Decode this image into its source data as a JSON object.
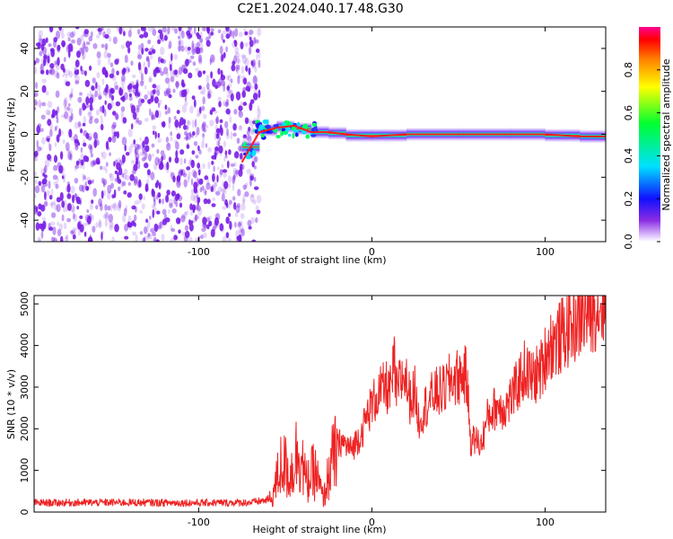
{
  "title": "C2E1.2024.040.17.48.G30",
  "colors": {
    "snr_line": "#ee2222",
    "noise_points": "#7a1fe6",
    "frame": "#000000"
  },
  "chart_data": [
    {
      "type": "heatmap",
      "title": "C2E1.2024.040.17.48.G30",
      "xlabel": "Height of straight line (km)",
      "ylabel": "Frequency (Hz)",
      "xlim": [
        -195,
        135
      ],
      "ylim": [
        -50,
        50
      ],
      "xticks": [
        -100,
        0,
        100
      ],
      "xtick_labels": [
        "-100",
        "0",
        "100"
      ],
      "yticks": [
        -40,
        -20,
        0,
        20,
        40
      ],
      "ytick_labels": [
        "-40",
        "-20",
        "0",
        "20",
        "40"
      ],
      "noise_region_x": [
        -195,
        -65
      ],
      "signal_track": {
        "x": [
          -75,
          -65,
          -55,
          -45,
          -35,
          -25,
          -15,
          0,
          20,
          50,
          80,
          100,
          120,
          135
        ],
        "y": [
          -13,
          1,
          3,
          4,
          1,
          1,
          0,
          -1,
          0,
          0,
          0,
          0,
          -1,
          -1
        ]
      },
      "colorbar": {
        "label": "Normalized spectral amplitude",
        "range": [
          0,
          1
        ],
        "ticks": [
          0.0,
          0.2,
          0.4,
          0.6,
          0.8
        ],
        "tick_labels": [
          "0.0",
          "0.2",
          "0.4",
          "0.6",
          "0.8"
        ]
      },
      "grid": false
    },
    {
      "type": "line",
      "xlabel": "Height of straight line (km)",
      "ylabel": "SNR (10 * v/v)",
      "xlim": [
        -195,
        135
      ],
      "ylim": [
        0,
        5200
      ],
      "xticks": [
        -100,
        0,
        100
      ],
      "xtick_labels": [
        "-100",
        "0",
        "100"
      ],
      "yticks": [
        0,
        1000,
        2000,
        3000,
        4000,
        5000
      ],
      "ytick_labels": [
        "0",
        "1000",
        "2000",
        "3000",
        "4000",
        "5000"
      ],
      "series": [
        {
          "x": [
            -195,
            -150,
            -100,
            -70,
            -58,
            -52,
            -47,
            -42,
            -38,
            -33,
            -28,
            -24,
            -22,
            -18,
            -12,
            -6,
            -2,
            3,
            8,
            11,
            13,
            14,
            16,
            19,
            22,
            25,
            27,
            31,
            36,
            41,
            46,
            51,
            54,
            55,
            57,
            60,
            63,
            67,
            72,
            77,
            82,
            88,
            93,
            98,
            102,
            108,
            114,
            120,
            126,
            130,
            135
          ],
          "y": [
            220,
            230,
            220,
            230,
            300,
            1200,
            900,
            1600,
            700,
            1000,
            300,
            1100,
            1300,
            1700,
            1500,
            1900,
            2400,
            2800,
            3000,
            2900,
            3600,
            2800,
            3100,
            3300,
            2700,
            2900,
            2200,
            2550,
            2850,
            2900,
            3200,
            3250,
            3300,
            3100,
            1700,
            1750,
            1600,
            2300,
            2550,
            2500,
            2850,
            3400,
            3200,
            3450,
            4000,
            4150,
            4450,
            4650,
            4850,
            4950,
            5050
          ]
        }
      ],
      "grid": false
    }
  ]
}
